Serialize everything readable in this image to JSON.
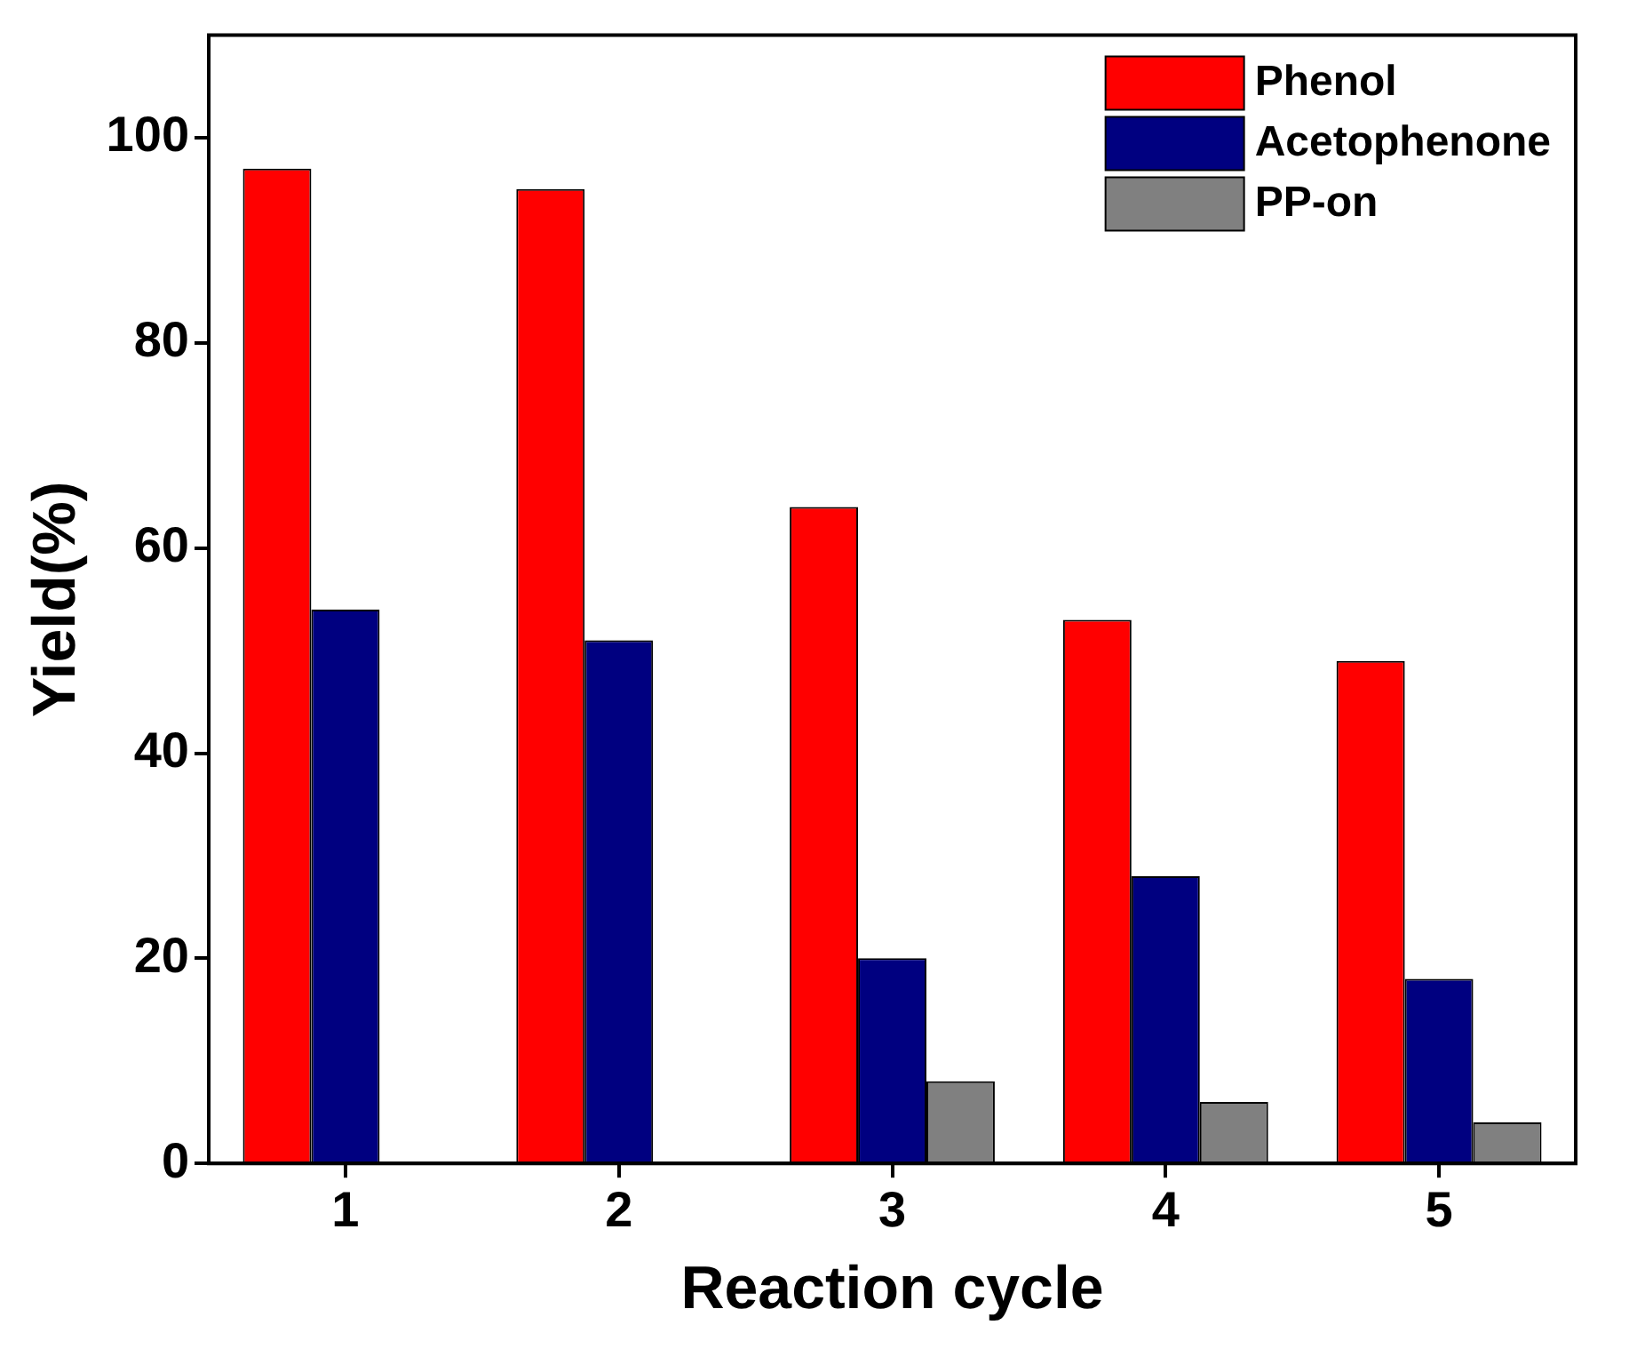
{
  "chart_data": {
    "type": "bar",
    "xlabel": "Reaction cycle",
    "ylabel": "Yield(%)",
    "categories": [
      "1",
      "2",
      "3",
      "4",
      "5"
    ],
    "series": [
      {
        "name": "Phenol",
        "color": "#ff0000",
        "values": [
          97,
          95,
          64,
          53,
          49
        ]
      },
      {
        "name": "Acetophenone",
        "color": "#000080",
        "values": [
          54,
          51,
          20,
          28,
          18
        ]
      },
      {
        "name": "PP-on",
        "color": "#808080",
        "values": [
          null,
          null,
          8,
          6,
          4
        ]
      }
    ],
    "ylim": [
      0,
      110
    ],
    "yticks": [
      0,
      20,
      40,
      60,
      80,
      100
    ],
    "grid": false,
    "legend": "top right"
  }
}
